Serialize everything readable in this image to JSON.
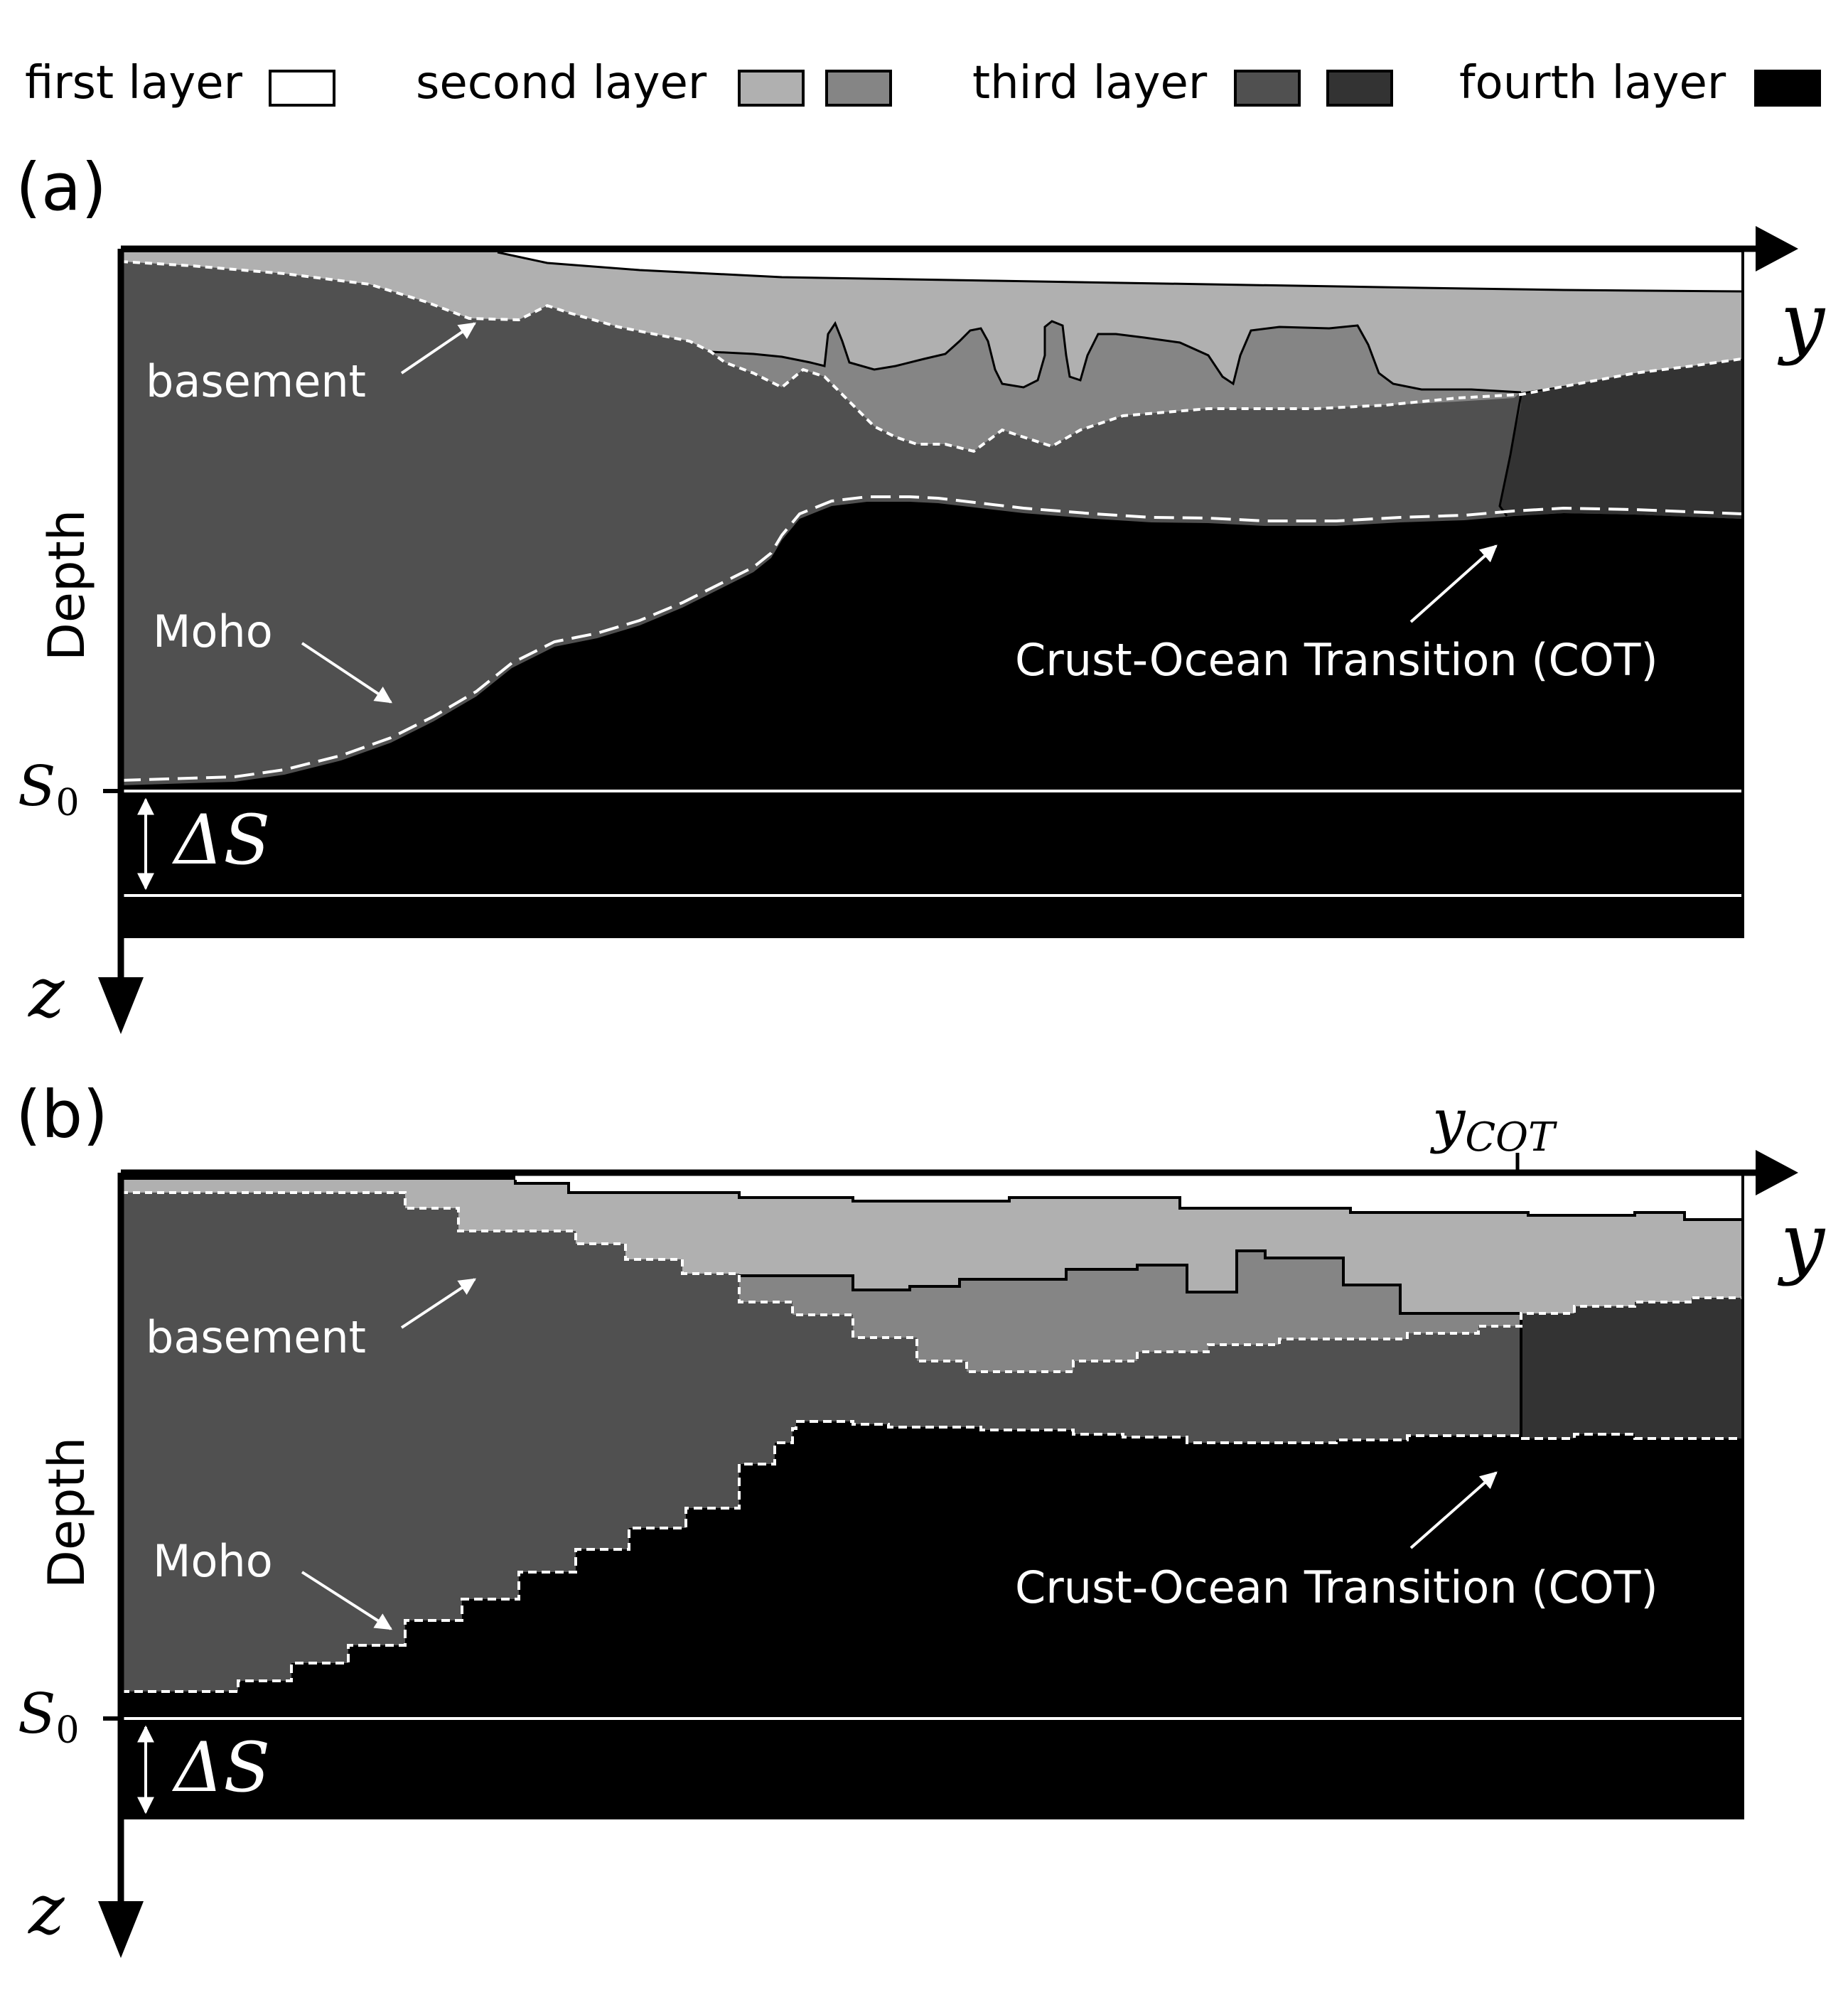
{
  "legend": {
    "first_layer": "first layer",
    "second_layer": "second layer",
    "third_layer": "third layer",
    "fourth_layer": "fourth layer"
  },
  "colors": {
    "first": "#ffffff",
    "second_a": "#b0b0b0",
    "second_b": "#858585",
    "third_a": "#505050",
    "third_b": "#333333",
    "fourth": "#000000"
  },
  "panel_a": {
    "label": "(a)",
    "basement": "basement",
    "moho": "Moho",
    "cot": "Crust-Ocean Transition (COT)",
    "depth": "Depth",
    "y_axis": "y",
    "z_axis": "z",
    "s0": "S",
    "s0_sub": "0",
    "delta_s": "ΔS"
  },
  "panel_b": {
    "label": "(b)",
    "basement": "basement",
    "moho": "Moho",
    "cot": "Crust-Ocean Transition (COT)",
    "depth": "Depth",
    "y_axis": "y",
    "z_axis": "z",
    "s0": "S",
    "s0_sub": "0",
    "delta_s": "ΔS",
    "y_cot": "y",
    "y_cot_sub": "COT"
  }
}
